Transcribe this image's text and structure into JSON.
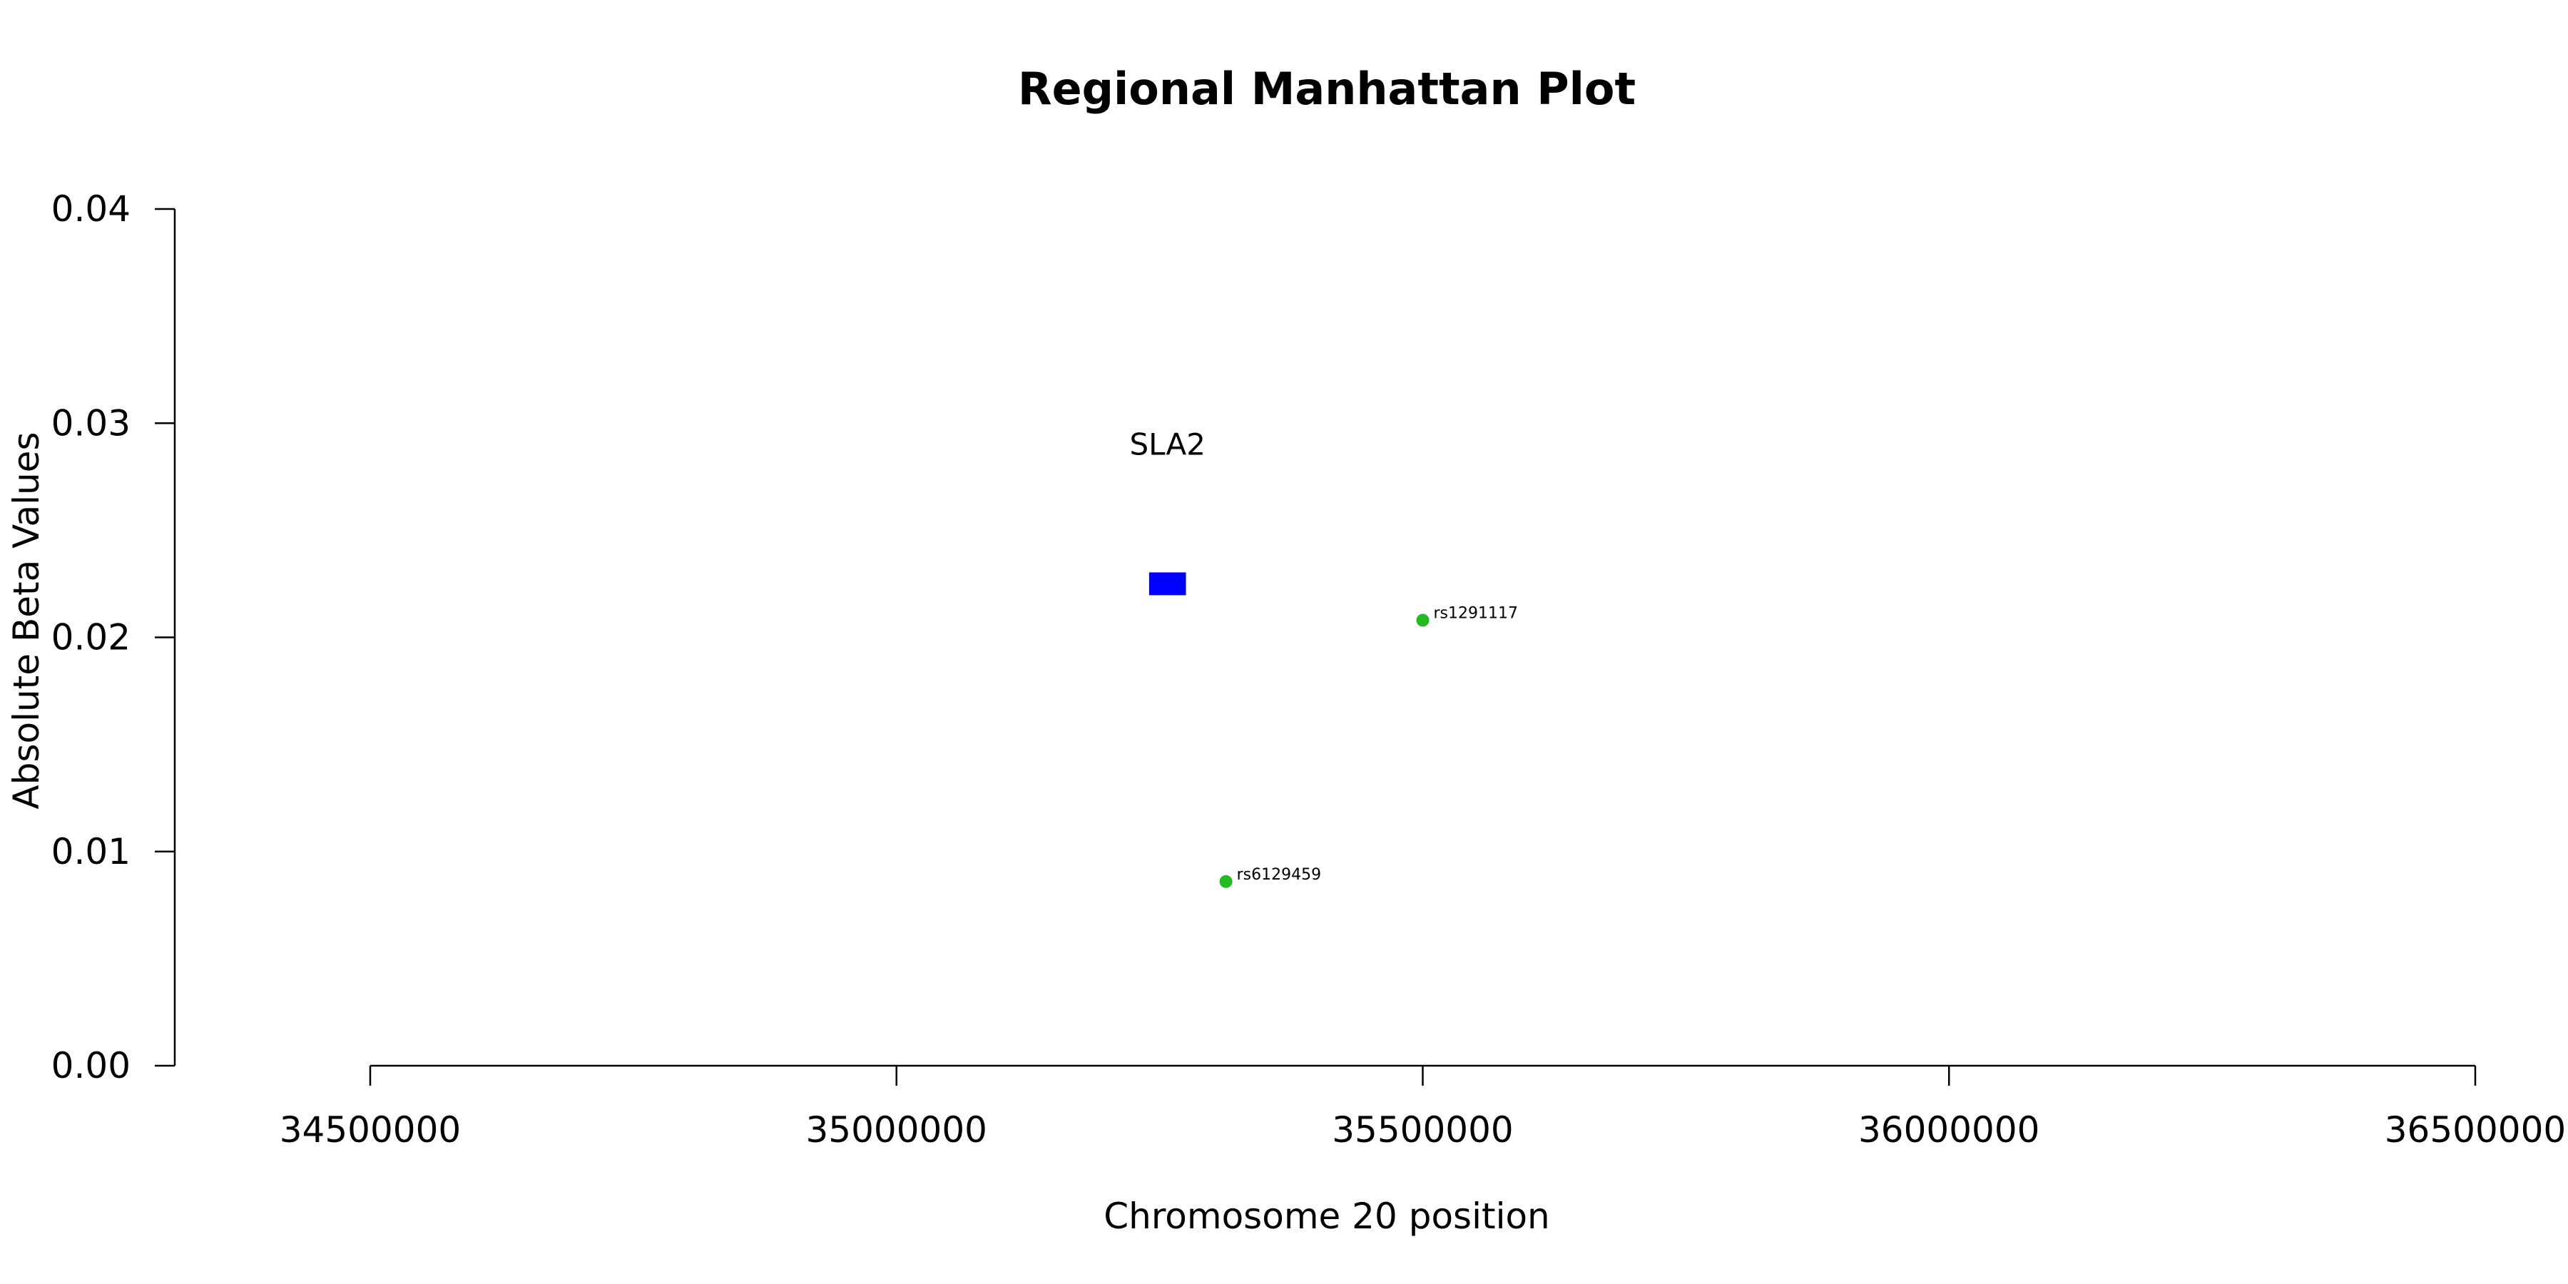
{
  "chart_data": {
    "type": "scatter",
    "title": "Regional Manhattan Plot",
    "xlabel": "Chromosome 20 position",
    "ylabel": "Absolute Beta Values",
    "xlim": [
      34500000,
      36500000
    ],
    "ylim": [
      0.0,
      0.04
    ],
    "x_ticks": [
      34500000,
      35000000,
      35500000,
      36000000,
      36500000
    ],
    "y_ticks": [
      0.0,
      0.01,
      0.02,
      0.03,
      0.04
    ],
    "x_tick_labels": [
      "34500000",
      "35000000",
      "35500000",
      "36000000",
      "36500000"
    ],
    "y_tick_labels": [
      "0.00",
      "0.01",
      "0.02",
      "0.03",
      "0.04"
    ],
    "grid": false,
    "genes": [
      {
        "name": "SLA2",
        "start": 35240000,
        "end": 35275000,
        "value": 0.0225,
        "color": "#0000ff"
      }
    ],
    "points": [
      {
        "label": "rs1291117",
        "x": 35500000,
        "y": 0.0208,
        "color": "#22bb22"
      },
      {
        "label": "rs6129459",
        "x": 35313000,
        "y": 0.0086,
        "color": "#22bb22"
      }
    ]
  }
}
